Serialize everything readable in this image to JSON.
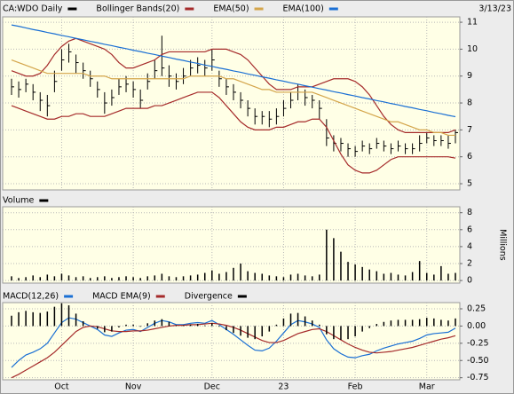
{
  "chart_data": {
    "type": "stock",
    "date": "3/13/23",
    "categories": [
      null,
      null,
      null,
      null,
      null,
      null,
      null,
      "Oct",
      null,
      null,
      null,
      null,
      null,
      null,
      null,
      null,
      null,
      "Nov",
      null,
      null,
      null,
      null,
      null,
      null,
      null,
      null,
      null,
      null,
      "Dec",
      null,
      null,
      null,
      null,
      null,
      null,
      null,
      null,
      null,
      "23",
      null,
      null,
      null,
      null,
      null,
      null,
      null,
      null,
      null,
      "Feb",
      null,
      null,
      null,
      null,
      null,
      null,
      null,
      null,
      null,
      "Mar",
      null,
      null,
      null,
      null
    ],
    "panels": [
      {
        "ylim": [
          4.77,
          11.2
        ],
        "yticks": [
          5,
          6,
          7,
          8,
          9,
          10,
          11
        ],
        "grid": true,
        "series": [
          {
            "name": "CA:WDO Daily",
            "type": "hlc",
            "color": "#000000",
            "high": [
              8.9,
              8.8,
              8.9,
              8.7,
              8.4,
              8.3,
              9.2,
              10.0,
              10.2,
              9.8,
              9.5,
              9.2,
              8.8,
              8.4,
              8.5,
              8.9,
              9.0,
              8.8,
              8.5,
              9.1,
              9.6,
              10.5,
              9.4,
              9.1,
              9.3,
              9.6,
              9.7,
              9.6,
              10.0,
              9.2,
              8.9,
              8.7,
              8.4,
              8.1,
              7.8,
              7.7,
              7.7,
              7.8,
              8.1,
              8.4,
              8.7,
              8.5,
              8.3,
              8.1,
              7.4,
              6.8,
              6.7,
              6.5,
              6.4,
              6.6,
              6.5,
              6.7,
              6.6,
              6.5,
              6.6,
              6.5,
              6.5,
              6.8,
              6.9,
              6.8,
              6.8,
              6.8,
              7.0
            ],
            "low": [
              8.3,
              8.2,
              8.4,
              8.1,
              7.7,
              7.5,
              8.4,
              9.2,
              9.5,
              9.1,
              8.9,
              8.6,
              8.2,
              7.6,
              7.9,
              8.3,
              8.4,
              8.2,
              7.8,
              8.5,
              8.9,
              9.0,
              8.6,
              8.5,
              8.7,
              9.0,
              9.1,
              9.0,
              9.2,
              8.6,
              8.3,
              8.1,
              7.8,
              7.5,
              7.2,
              7.2,
              7.1,
              7.2,
              7.5,
              7.8,
              8.1,
              7.9,
              7.8,
              7.4,
              6.4,
              6.2,
              6.2,
              6.0,
              6.0,
              6.2,
              6.1,
              6.3,
              6.2,
              6.1,
              6.2,
              6.1,
              6.1,
              6.2,
              6.5,
              6.4,
              6.4,
              6.3,
              6.5
            ],
            "close": [
              8.6,
              8.5,
              8.7,
              8.4,
              8.1,
              7.9,
              8.8,
              9.6,
              9.9,
              9.5,
              9.2,
              8.9,
              8.5,
              8.0,
              8.2,
              8.6,
              8.7,
              8.5,
              8.1,
              8.8,
              9.2,
              9.3,
              9.0,
              8.8,
              9.0,
              9.3,
              9.4,
              9.3,
              9.6,
              8.9,
              8.6,
              8.4,
              8.1,
              7.8,
              7.5,
              7.5,
              7.4,
              7.5,
              7.8,
              8.1,
              8.4,
              8.2,
              8.1,
              7.8,
              6.7,
              6.5,
              6.5,
              6.3,
              6.2,
              6.4,
              6.3,
              6.5,
              6.4,
              6.3,
              6.4,
              6.3,
              6.3,
              6.5,
              6.7,
              6.6,
              6.6,
              6.5,
              6.9
            ]
          },
          {
            "name": "Bollinger Bands(20)",
            "type": "band",
            "color": "#a52a2a",
            "upper": [
              9.2,
              9.1,
              9.0,
              9.0,
              9.1,
              9.4,
              9.8,
              10.1,
              10.3,
              10.4,
              10.3,
              10.2,
              10.1,
              10.0,
              9.8,
              9.5,
              9.3,
              9.3,
              9.4,
              9.5,
              9.6,
              9.8,
              9.9,
              9.9,
              9.9,
              9.9,
              9.9,
              9.9,
              10.0,
              10.0,
              10.0,
              9.9,
              9.8,
              9.6,
              9.3,
              9.0,
              8.7,
              8.5,
              8.5,
              8.5,
              8.6,
              8.6,
              8.6,
              8.7,
              8.8,
              8.9,
              8.9,
              8.9,
              8.8,
              8.6,
              8.3,
              7.9,
              7.5,
              7.2,
              7.0,
              6.9,
              6.9,
              6.9,
              6.9,
              6.9,
              6.9,
              6.9,
              7.0
            ],
            "lower": [
              7.9,
              7.8,
              7.7,
              7.6,
              7.5,
              7.4,
              7.4,
              7.5,
              7.5,
              7.6,
              7.6,
              7.5,
              7.5,
              7.5,
              7.6,
              7.7,
              7.8,
              7.8,
              7.8,
              7.8,
              7.9,
              7.9,
              8.0,
              8.1,
              8.2,
              8.3,
              8.4,
              8.4,
              8.4,
              8.2,
              7.9,
              7.6,
              7.3,
              7.1,
              7.0,
              7.0,
              7.0,
              7.1,
              7.1,
              7.2,
              7.3,
              7.3,
              7.4,
              7.4,
              7.1,
              6.6,
              6.1,
              5.7,
              5.5,
              5.4,
              5.4,
              5.5,
              5.7,
              5.9,
              6.0,
              6.0,
              6.0,
              6.0,
              6.0,
              6.0,
              6.0,
              6.0,
              5.95
            ]
          },
          {
            "name": "EMA(50)",
            "type": "line",
            "color": "#d4a54a",
            "values": [
              9.6,
              9.5,
              9.4,
              9.3,
              9.2,
              9.1,
              9.1,
              9.1,
              9.1,
              9.1,
              9.1,
              9.0,
              9.0,
              9.0,
              8.9,
              8.9,
              8.9,
              8.9,
              8.9,
              8.9,
              8.9,
              8.9,
              8.9,
              8.9,
              8.9,
              9.0,
              9.0,
              9.0,
              9.0,
              9.0,
              8.9,
              8.9,
              8.8,
              8.7,
              8.6,
              8.5,
              8.5,
              8.4,
              8.4,
              8.4,
              8.4,
              8.4,
              8.4,
              8.3,
              8.2,
              8.1,
              8.0,
              7.9,
              7.8,
              7.7,
              7.6,
              7.5,
              7.4,
              7.3,
              7.3,
              7.2,
              7.1,
              7.0,
              7.0,
              6.9,
              6.9,
              6.8,
              6.8
            ]
          },
          {
            "name": "EMA(100)",
            "type": "line",
            "color": "#1a6fd4",
            "values": [
              10.9,
              10.85,
              10.79,
              10.73,
              10.68,
              10.62,
              10.57,
              10.51,
              10.46,
              10.4,
              10.35,
              10.29,
              10.24,
              10.18,
              10.13,
              10.07,
              10.02,
              9.96,
              9.91,
              9.85,
              9.8,
              9.74,
              9.69,
              9.63,
              9.58,
              9.52,
              9.47,
              9.41,
              9.36,
              9.3,
              9.25,
              9.19,
              9.14,
              9.08,
              9.03,
              8.97,
              8.92,
              8.86,
              8.81,
              8.75,
              8.7,
              8.64,
              8.59,
              8.53,
              8.48,
              8.42,
              8.37,
              8.31,
              8.26,
              8.2,
              8.15,
              8.09,
              8.04,
              7.98,
              7.93,
              7.87,
              7.82,
              7.76,
              7.71,
              7.65,
              7.6,
              7.54,
              7.49
            ]
          }
        ]
      },
      {
        "ylim": [
          -0.3,
          8.7
        ],
        "yticks": [
          0,
          2,
          4,
          6,
          8
        ],
        "grid": true,
        "ylabel": "Millions",
        "series": [
          {
            "name": "Volume",
            "type": "bar",
            "color": "#000000",
            "values": [
              0.5,
              0.3,
              0.4,
              0.6,
              0.4,
              0.7,
              0.5,
              0.8,
              0.6,
              0.4,
              0.5,
              0.3,
              0.4,
              0.5,
              0.3,
              0.4,
              0.5,
              0.4,
              0.3,
              0.5,
              0.6,
              0.8,
              0.5,
              0.4,
              0.5,
              0.6,
              0.7,
              0.9,
              1.2,
              0.8,
              1.0,
              1.5,
              2.0,
              1.1,
              0.9,
              0.8,
              0.6,
              0.5,
              0.4,
              0.7,
              0.8,
              0.6,
              0.5,
              0.7,
              6.0,
              5.0,
              3.4,
              2.2,
              1.9,
              1.6,
              1.3,
              1.1,
              0.8,
              0.9,
              0.7,
              0.6,
              1.0,
              2.3,
              0.9,
              0.7,
              1.7,
              0.8,
              0.9
            ]
          }
        ]
      },
      {
        "ylim": [
          -0.78,
          0.34
        ],
        "yticks": [
          {
            "value": 0.25,
            "label": "0.25"
          },
          {
            "value": 0,
            "label": "0.00"
          },
          {
            "value": -0.25,
            "label": "-0.25"
          },
          {
            "value": -0.5,
            "label": "-0.50"
          },
          {
            "value": -0.75,
            "label": "-0.75"
          }
        ],
        "grid": true,
        "series": [
          {
            "name": "MACD(12,26)",
            "type": "line",
            "color": "#1a6fd4",
            "values": [
              -0.6,
              -0.5,
              -0.42,
              -0.38,
              -0.33,
              -0.25,
              -0.1,
              0.05,
              0.12,
              0.1,
              0.05,
              0.0,
              -0.05,
              -0.13,
              -0.15,
              -0.1,
              -0.06,
              -0.05,
              -0.08,
              -0.02,
              0.04,
              0.08,
              0.06,
              0.02,
              0.02,
              0.04,
              0.05,
              0.04,
              0.08,
              0.02,
              -0.05,
              -0.12,
              -0.2,
              -0.28,
              -0.35,
              -0.36,
              -0.32,
              -0.22,
              -0.1,
              0.02,
              0.08,
              0.06,
              0.03,
              -0.02,
              -0.2,
              -0.33,
              -0.4,
              -0.45,
              -0.46,
              -0.43,
              -0.41,
              -0.36,
              -0.32,
              -0.29,
              -0.26,
              -0.24,
              -0.22,
              -0.18,
              -0.13,
              -0.11,
              -0.1,
              -0.09,
              -0.03
            ]
          },
          {
            "name": "MACD EMA(9)",
            "type": "line",
            "color": "#a52a2a",
            "values": [
              -0.75,
              -0.7,
              -0.64,
              -0.58,
              -0.52,
              -0.46,
              -0.38,
              -0.28,
              -0.18,
              -0.08,
              -0.02,
              0.0,
              -0.01,
              -0.04,
              -0.07,
              -0.08,
              -0.08,
              -0.07,
              -0.07,
              -0.06,
              -0.04,
              -0.02,
              0.0,
              0.01,
              0.01,
              0.02,
              0.02,
              0.03,
              0.04,
              0.03,
              0.01,
              -0.02,
              -0.06,
              -0.11,
              -0.16,
              -0.21,
              -0.24,
              -0.24,
              -0.21,
              -0.16,
              -0.11,
              -0.08,
              -0.05,
              -0.04,
              -0.08,
              -0.14,
              -0.2,
              -0.26,
              -0.31,
              -0.35,
              -0.38,
              -0.39,
              -0.38,
              -0.37,
              -0.35,
              -0.33,
              -0.31,
              -0.28,
              -0.25,
              -0.22,
              -0.19,
              -0.17,
              -0.14
            ]
          },
          {
            "name": "Divergence",
            "type": "bar",
            "color": "#000000",
            "values": [
              0.15,
              0.2,
              0.22,
              0.2,
              0.19,
              0.21,
              0.28,
              0.33,
              0.3,
              0.18,
              0.07,
              0.0,
              -0.04,
              -0.09,
              -0.08,
              -0.02,
              0.02,
              0.02,
              -0.01,
              0.04,
              0.08,
              0.1,
              0.06,
              0.01,
              0.01,
              0.02,
              0.03,
              0.01,
              0.04,
              -0.01,
              -0.06,
              -0.1,
              -0.14,
              -0.17,
              -0.19,
              -0.15,
              -0.08,
              0.02,
              0.11,
              0.18,
              0.19,
              0.14,
              0.08,
              0.02,
              -0.12,
              -0.19,
              -0.2,
              -0.19,
              -0.15,
              -0.08,
              -0.03,
              0.03,
              0.06,
              0.08,
              0.09,
              0.09,
              0.09,
              0.1,
              0.12,
              0.11,
              0.09,
              0.08,
              0.11
            ]
          }
        ]
      }
    ]
  }
}
